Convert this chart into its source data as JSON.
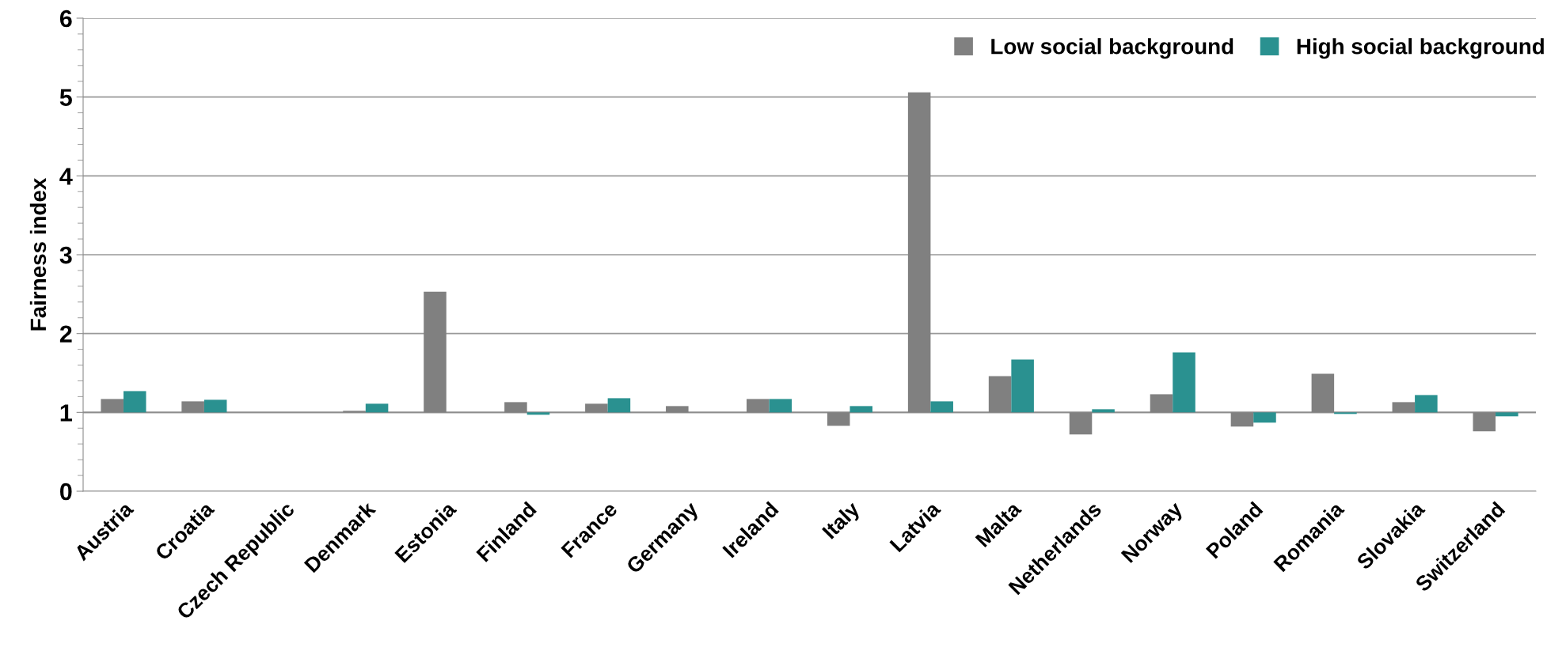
{
  "chart_data": {
    "type": "bar",
    "ylabel": "Fairness index",
    "categories": [
      "Austria",
      "Croatia",
      "Czech Republic",
      "Denmark",
      "Estonia",
      "Finland",
      "France",
      "Germany",
      "Ireland",
      "Italy",
      "Latvia",
      "Malta",
      "Netherlands",
      "Norway",
      "Poland",
      "Romania",
      "Slovakia",
      "Switzerland"
    ],
    "series": [
      {
        "name": "Low social background",
        "color": "#808080",
        "base": [
          1,
          1,
          null,
          1,
          1,
          1,
          1,
          1,
          1,
          1,
          1,
          1,
          1,
          1,
          1,
          1,
          1,
          1
        ],
        "values": [
          0.17,
          0.14,
          null,
          0.02,
          1.53,
          0.13,
          0.11,
          0.08,
          0.17,
          -0.17,
          4.06,
          0.46,
          -0.28,
          0.23,
          -0.18,
          0.49,
          0.13,
          -0.24
        ]
      },
      {
        "name": "High social background",
        "color": "#2a9190",
        "base": [
          1,
          1,
          null,
          1,
          null,
          1,
          1,
          null,
          1,
          1,
          1,
          1,
          1,
          1,
          1,
          1,
          1,
          1
        ],
        "values": [
          0.27,
          0.16,
          null,
          0.11,
          null,
          -0.03,
          0.18,
          null,
          0.17,
          0.08,
          0.14,
          0.67,
          0.04,
          0.76,
          -0.13,
          -0.02,
          0.22,
          -0.05
        ]
      }
    ],
    "ylim": [
      0,
      6
    ],
    "yticks": [
      0,
      1,
      2,
      3,
      4,
      5,
      6
    ],
    "grid": "y",
    "legend": "top right",
    "ref_lines": [
      {
        "axis": "y",
        "value": 1,
        "color": "#8c8c8c"
      }
    ]
  }
}
